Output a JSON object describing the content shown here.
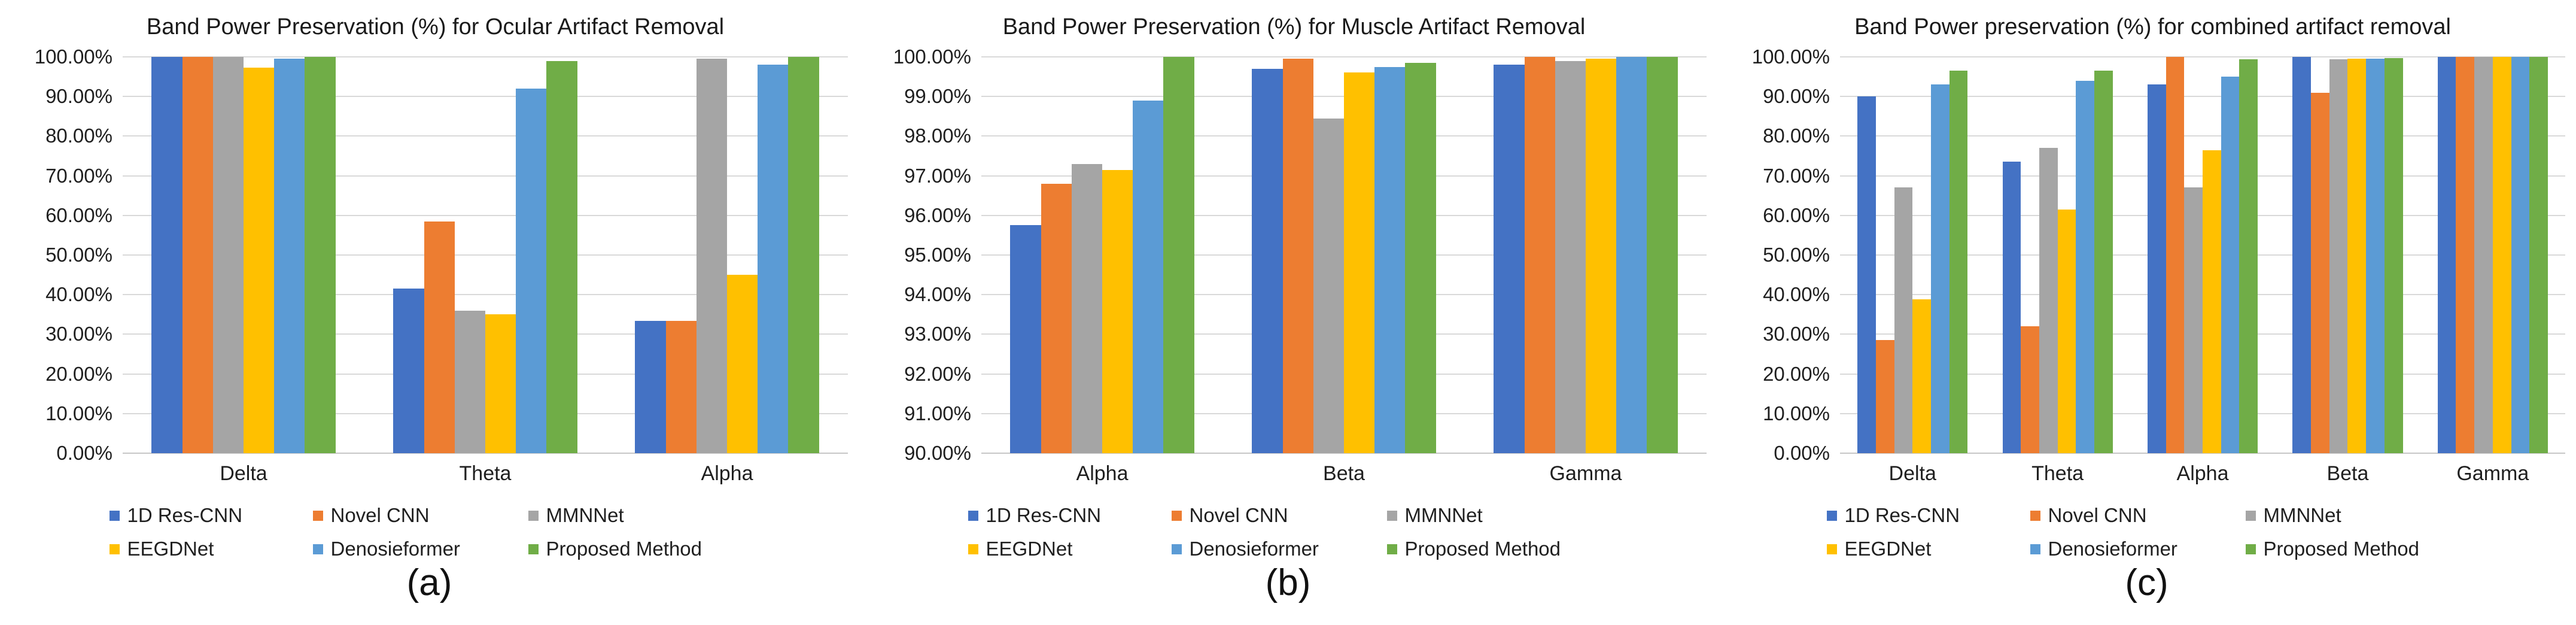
{
  "page": {
    "background": "#ffffff"
  },
  "palette": {
    "blue": "#4472C4",
    "orange": "#ED7D31",
    "gray": "#A5A5A5",
    "yellow": "#FFC000",
    "light_blue": "#5B9BD5",
    "green": "#70AD47",
    "gridline": "#D9D9D9"
  },
  "chart_data": [
    {
      "type": "bar",
      "title": "Band Power Preservation (%) for Ocular Artifact Removal",
      "caption": "(a)",
      "categories": [
        "Delta",
        "Theta",
        "Alpha"
      ],
      "xlabel": "",
      "ylabel": "",
      "ylim": [
        0,
        100
      ],
      "grid": true,
      "legend_position": "bottom",
      "y_tick_labels": [
        "100.00%",
        "90.00%",
        "80.00%",
        "70.00%",
        "60.00%",
        "50.00%",
        "40.00%",
        "30.00%",
        "20.00%",
        "10.00%",
        "0.00%"
      ],
      "series": [
        {
          "name": "1D Res-CNN",
          "color": "#4472C4",
          "values": [
            100,
            41.5,
            33.4
          ]
        },
        {
          "name": "Novel CNN",
          "color": "#ED7D31",
          "values": [
            100,
            58.5,
            33.4
          ]
        },
        {
          "name": "MMNNet",
          "color": "#A5A5A5",
          "values": [
            100,
            36.0,
            99.5
          ]
        },
        {
          "name": "EEGDNet",
          "color": "#FFC000",
          "values": [
            97.3,
            35.0,
            45.0
          ]
        },
        {
          "name": "Denosieformer",
          "color": "#5B9BD5",
          "values": [
            99.5,
            92.0,
            98.0
          ]
        },
        {
          "name": "Proposed Method",
          "color": "#70AD47",
          "values": [
            100,
            99.0,
            100
          ]
        }
      ]
    },
    {
      "type": "bar",
      "title": "Band Power Preservation (%) for Muscle Artifact Removal",
      "caption": "(b)",
      "categories": [
        "Alpha",
        "Beta",
        "Gamma"
      ],
      "xlabel": "",
      "ylabel": "",
      "ylim": [
        90,
        100
      ],
      "grid": true,
      "legend_position": "bottom",
      "y_tick_labels": [
        "100.00%",
        "99.00%",
        "98.00%",
        "97.00%",
        "96.00%",
        "95.00%",
        "94.00%",
        "93.00%",
        "92.00%",
        "91.00%",
        "90.00%"
      ],
      "series": [
        {
          "name": "1D Res-CNN",
          "color": "#4472C4",
          "values": [
            95.75,
            99.7,
            99.8
          ]
        },
        {
          "name": "Novel CNN",
          "color": "#ED7D31",
          "values": [
            96.8,
            99.95,
            100
          ]
        },
        {
          "name": "MMNNet",
          "color": "#A5A5A5",
          "values": [
            97.3,
            98.45,
            99.9
          ]
        },
        {
          "name": "EEGDNet",
          "color": "#FFC000",
          "values": [
            97.15,
            99.6,
            99.95
          ]
        },
        {
          "name": "Denosieformer",
          "color": "#5B9BD5",
          "values": [
            98.9,
            99.75,
            100
          ]
        },
        {
          "name": "Proposed Method",
          "color": "#70AD47",
          "values": [
            100,
            99.85,
            100
          ]
        }
      ]
    },
    {
      "type": "bar",
      "title": "Band Power preservation (%) for combined artifact removal",
      "caption": "(c)",
      "categories": [
        "Delta",
        "Theta",
        "Alpha",
        "Beta",
        "Gamma"
      ],
      "xlabel": "",
      "ylabel": "",
      "ylim": [
        0,
        100
      ],
      "grid": true,
      "legend_position": "bottom",
      "y_tick_labels": [
        "100.00%",
        "90.00%",
        "80.00%",
        "70.00%",
        "60.00%",
        "50.00%",
        "40.00%",
        "30.00%",
        "20.00%",
        "10.00%",
        "0.00%"
      ],
      "series": [
        {
          "name": "1D Res-CNN",
          "color": "#4472C4",
          "values": [
            90.0,
            73.5,
            93.0,
            100,
            100
          ]
        },
        {
          "name": "Novel CNN",
          "color": "#ED7D31",
          "values": [
            28.5,
            32.0,
            100,
            91.0,
            100
          ]
        },
        {
          "name": "MMNNet",
          "color": "#A5A5A5",
          "values": [
            67.0,
            77.0,
            67.0,
            99.4,
            100
          ]
        },
        {
          "name": "EEGDNet",
          "color": "#FFC000",
          "values": [
            38.8,
            61.5,
            76.5,
            99.5,
            100
          ]
        },
        {
          "name": "Denosieformer",
          "color": "#5B9BD5",
          "values": [
            93.0,
            94.0,
            95.0,
            99.5,
            100
          ]
        },
        {
          "name": "Proposed Method",
          "color": "#70AD47",
          "values": [
            96.6,
            96.6,
            99.4,
            99.7,
            100
          ]
        }
      ]
    }
  ]
}
